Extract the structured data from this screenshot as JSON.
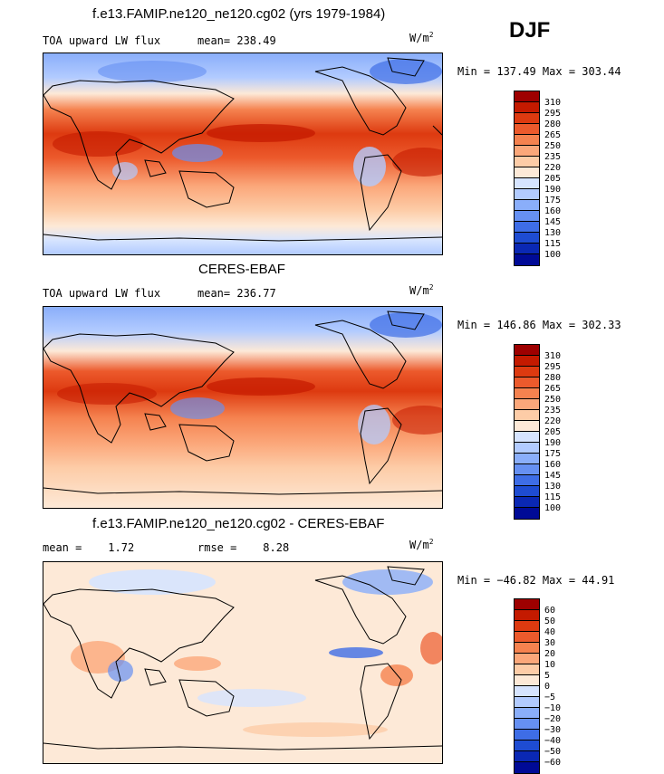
{
  "season": "DJF",
  "unit_base": "W/m",
  "unit_exp": "2",
  "panels": [
    {
      "title": "f.e13.FAMIP.ne120_ne120.cg02 (yrs 1979-1984)",
      "left_label": "TOA upward LW flux",
      "stat1_label": "mean=",
      "stat1_value": "238.49",
      "stat2_label": "",
      "stat2_value": "",
      "minmax": "Min = 137.49 Max = 303.44",
      "levels": [
        "310",
        "295",
        "280",
        "265",
        "250",
        "235",
        "220",
        "205",
        "190",
        "175",
        "160",
        "145",
        "130",
        "115",
        "100"
      ]
    },
    {
      "title": "CERES-EBAF",
      "left_label": "TOA upward LW flux",
      "stat1_label": "mean=",
      "stat1_value": "236.77",
      "stat2_label": "",
      "stat2_value": "",
      "minmax": "Min = 146.86 Max = 302.33",
      "levels": [
        "310",
        "295",
        "280",
        "265",
        "250",
        "235",
        "220",
        "205",
        "190",
        "175",
        "160",
        "145",
        "130",
        "115",
        "100"
      ]
    },
    {
      "title": "f.e13.FAMIP.ne120_ne120.cg02 - CERES-EBAF",
      "left_label": "",
      "stat1_label": "mean =",
      "stat1_value": "1.72",
      "stat2_label": "rmse =",
      "stat2_value": "8.28",
      "minmax": "Min = −46.82 Max =  44.91",
      "levels": [
        "60",
        "50",
        "40",
        "30",
        "20",
        "10",
        "5",
        "0",
        "−5",
        "−10",
        "−20",
        "−30",
        "−40",
        "−50",
        "−60"
      ]
    }
  ],
  "colors": {
    "scale": [
      "#9e0000",
      "#c41a00",
      "#dd3a10",
      "#ec5a2c",
      "#f5824f",
      "#fba77a",
      "#fdcca7",
      "#fde9d7",
      "#d6e4ff",
      "#b2cbff",
      "#8aaefa",
      "#6690f2",
      "#3e6de6",
      "#1e4cd2",
      "#0a28b4",
      "#000a96"
    ]
  }
}
